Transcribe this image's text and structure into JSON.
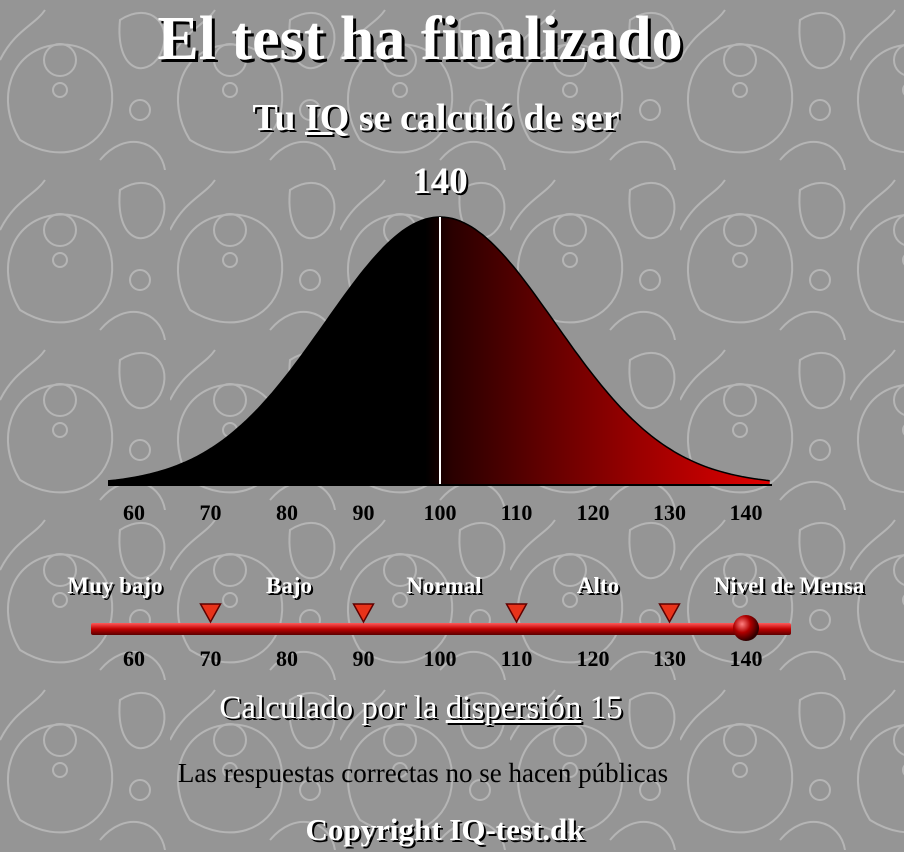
{
  "header": {
    "title": "El test ha finalizado",
    "subtitle_prefix": "Tu ",
    "subtitle_link": "IQ",
    "subtitle_suffix": " se calculó de ser",
    "score": "140"
  },
  "distribution": {
    "mean": 100,
    "sd": 15,
    "highlight": 100,
    "x_ticks": [
      "60",
      "70",
      "80",
      "90",
      "100",
      "110",
      "120",
      "130",
      "140"
    ]
  },
  "scale": {
    "categories": [
      "Muy bajo",
      "Bajo",
      "Normal",
      "Alto",
      "Nivel de Mensa"
    ],
    "markers": [
      70,
      90,
      110,
      130
    ],
    "ticks": [
      "60",
      "70",
      "80",
      "90",
      "100",
      "110",
      "120",
      "130",
      "140"
    ],
    "result": 140
  },
  "footer": {
    "calc_prefix": "Calculado por la ",
    "calc_link": "dispersión",
    "calc_suffix": " 15",
    "note": "Las respuestas correctas no se hacen públicas",
    "copyright": "Copyright IQ-test.dk"
  },
  "colors": {
    "background": "#959595",
    "curve_dark": "#000000",
    "curve_red": "#e00000",
    "marker": "#e8331a",
    "bar": "#c00000"
  }
}
